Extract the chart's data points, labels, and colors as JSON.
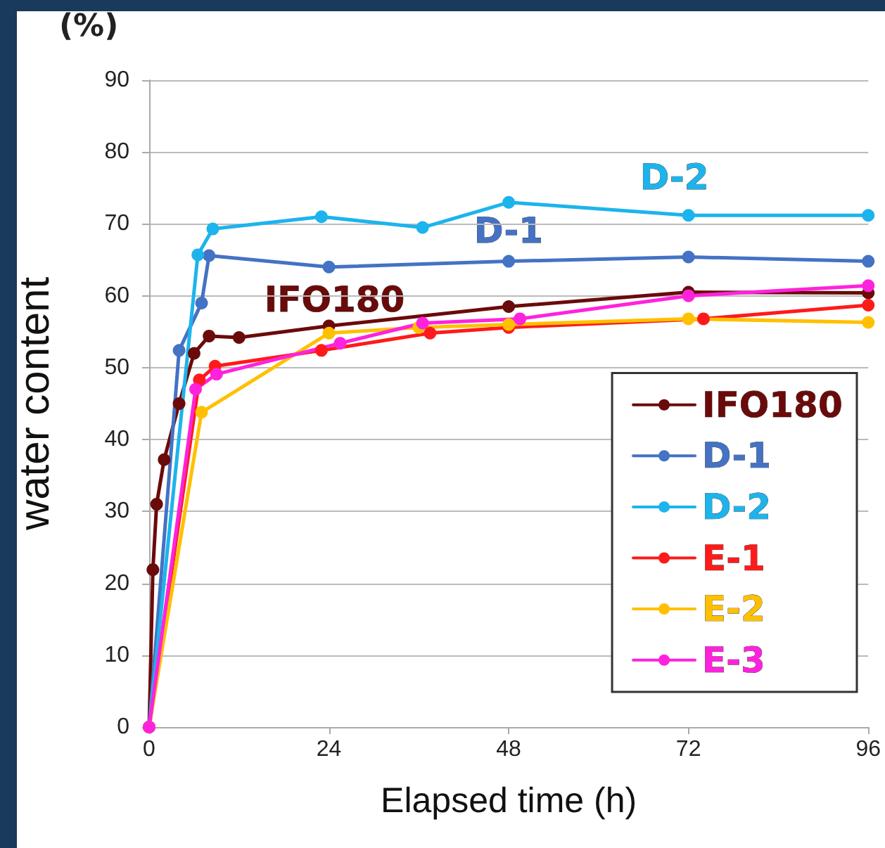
{
  "chart_data": {
    "type": "line",
    "xlabel": "Elapsed time (h)",
    "ylabel": "water content",
    "annotations": [
      "(%)",
      "IFO180",
      "D-1",
      "D-2"
    ],
    "xlim": [
      0,
      96
    ],
    "xticks": [
      0,
      24,
      48,
      72,
      96
    ],
    "ylim": [
      0,
      90
    ],
    "yticks": [
      0,
      10,
      20,
      30,
      40,
      50,
      60,
      70,
      80,
      90
    ],
    "grid": "y",
    "legend": "bottom right",
    "marker": "circle",
    "line_style": "solid",
    "series": [
      {
        "name": "IFO180",
        "color": "#6b0a0a",
        "x": [
          0,
          0.5,
          1,
          2,
          4,
          6,
          8,
          12,
          24,
          48,
          72,
          96
        ],
        "values": [
          0,
          21.9,
          31,
          37.2,
          45,
          52,
          54.4,
          54.2,
          55.8,
          58.5,
          60.5,
          60.4
        ]
      },
      {
        "name": "D-1",
        "color": "#4472c4",
        "x": [
          0,
          4,
          7,
          8,
          24,
          48,
          72,
          96
        ],
        "values": [
          0,
          52.4,
          59,
          65.6,
          64,
          64.8,
          65.4,
          64.8
        ]
      },
      {
        "name": "D-2",
        "color": "#1cb4ec",
        "x": [
          0,
          6.5,
          8.5,
          23,
          36.5,
          48,
          72,
          96
        ],
        "values": [
          0,
          65.7,
          69.3,
          71,
          69.5,
          73,
          71.2,
          71.2
        ]
      },
      {
        "name": "E-1",
        "color": "#ff1a1a",
        "x": [
          0,
          6.7,
          8.8,
          23,
          37.5,
          48,
          74,
          96
        ],
        "values": [
          0,
          48.3,
          50.2,
          52.4,
          54.8,
          55.6,
          56.8,
          58.7
        ]
      },
      {
        "name": "E-2",
        "color": "#ffc000",
        "x": [
          0,
          7,
          24,
          36,
          48,
          72,
          96
        ],
        "values": [
          0,
          43.8,
          54.8,
          55.6,
          56,
          56.8,
          56.3
        ]
      },
      {
        "name": "E-3",
        "color": "#ff22dd",
        "x": [
          0,
          6.2,
          9,
          25.5,
          36.5,
          49.5,
          72,
          96
        ],
        "values": [
          0,
          47,
          49.1,
          53.4,
          56.2,
          56.8,
          60,
          61.4
        ]
      }
    ]
  }
}
